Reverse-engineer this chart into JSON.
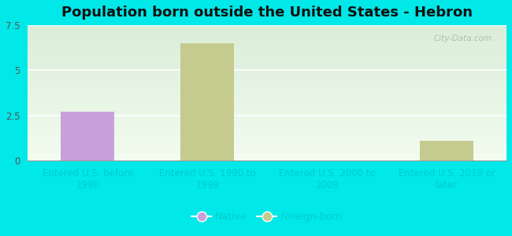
{
  "title": "Population born outside the United States - Hebron",
  "categories": [
    "Entered U.S. before\n1990",
    "Entered U.S. 1990 to\n1999",
    "Entered U.S. 2000 to\n2009",
    "Entered U.S. 2010 or\nlater"
  ],
  "bar_values": [
    2.7,
    6.5,
    0,
    1.1
  ],
  "bar_colors": [
    "#c9a0dc",
    "#c8cc99",
    "#c8cc99",
    "#c8cc99"
  ],
  "bar_types": [
    "native",
    "foreign",
    "none",
    "foreign"
  ],
  "native_color": "#c9a0dc",
  "foreign_color": "#c5ca8e",
  "ylim": [
    0,
    7.5
  ],
  "yticks": [
    0,
    2.5,
    5,
    7.5
  ],
  "background_outer": "#00e8e8",
  "legend_native": "Native",
  "legend_foreign": "Foreign-born",
  "bar_width": 0.45,
  "title_fontsize": 13,
  "tick_fontsize": 8.5,
  "legend_fontsize": 9,
  "watermark": "City-Data.com"
}
